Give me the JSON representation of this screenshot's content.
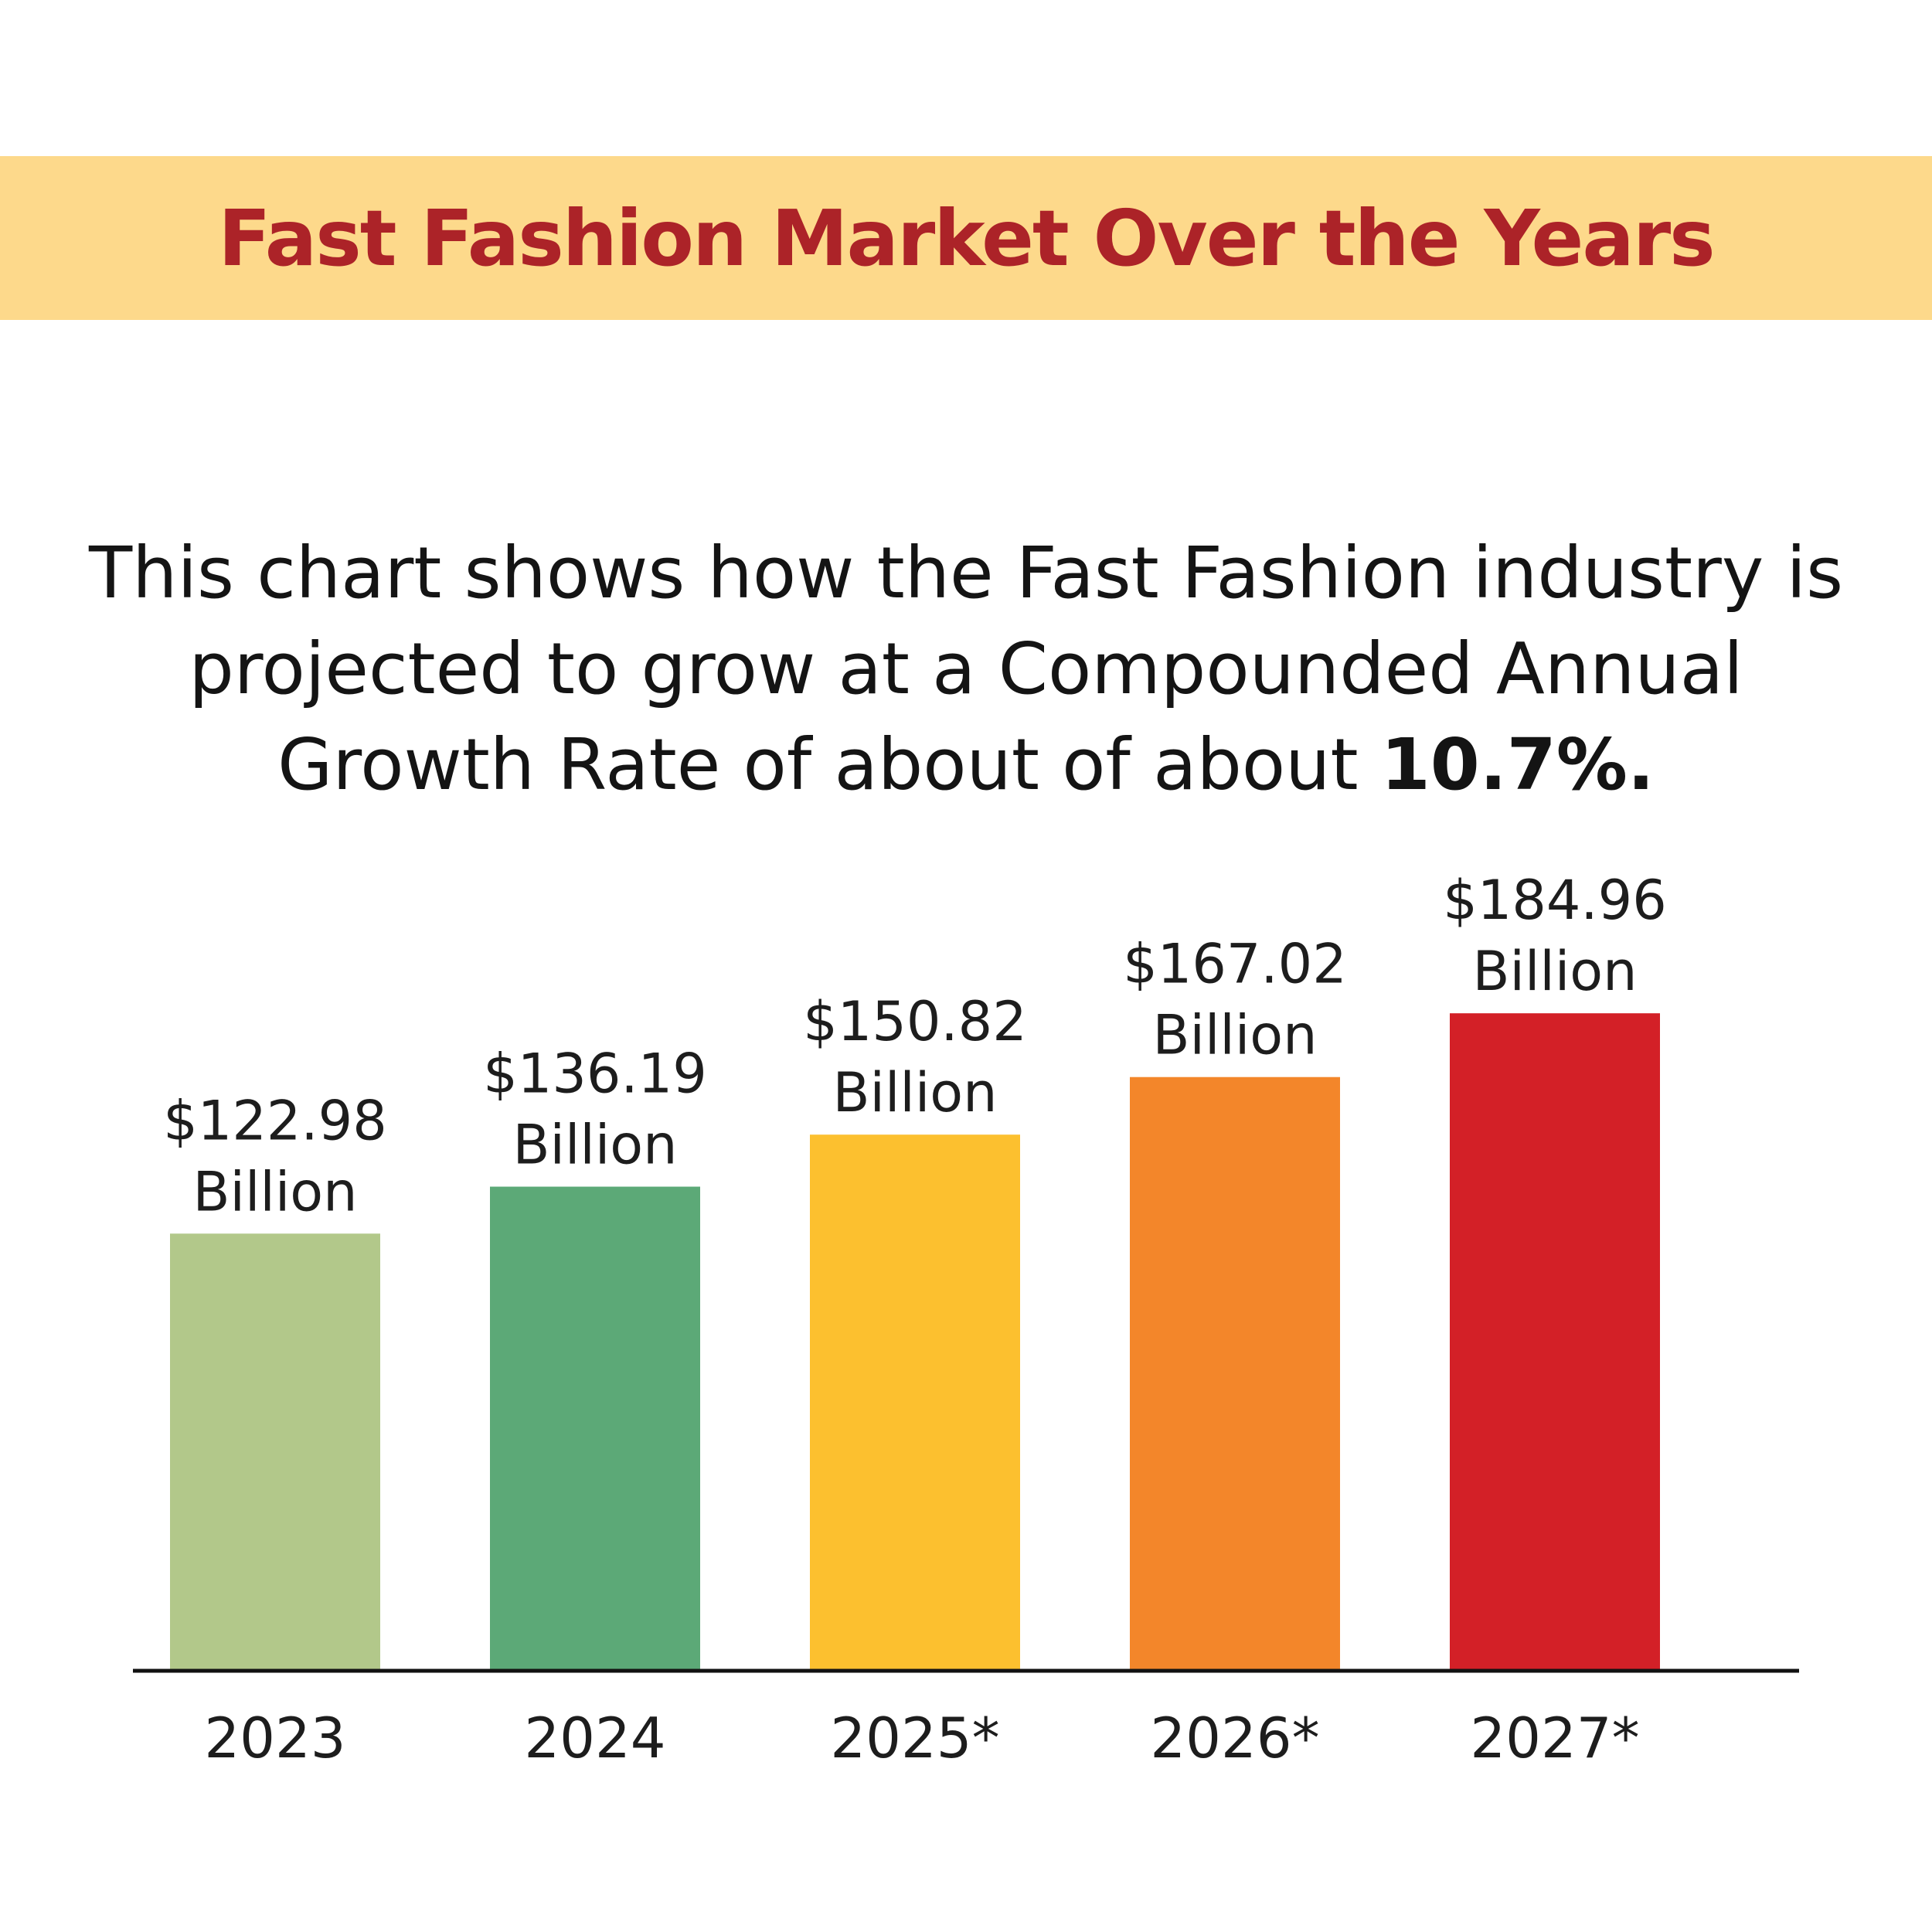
{
  "header": {
    "title": "Fast Fashion Market Over the Years"
  },
  "description": {
    "text": "This chart shows how the Fast Fashion industry is projected to grow at a Compounded Annual Growth Rate of about of about ",
    "highlight": "10.7%."
  },
  "colors": {
    "title_band": "#fdd98b",
    "title_text": "#ac2328",
    "axis": "#111111"
  },
  "chart_data": {
    "type": "bar",
    "title": "Fast Fashion Market Over the Years",
    "xlabel": "",
    "ylabel": "",
    "grid": false,
    "categories": [
      "2023",
      "2024",
      "2025*",
      "2026*",
      "2027*"
    ],
    "values": [
      122.98,
      136.19,
      150.82,
      167.02,
      184.96
    ],
    "value_labels": [
      "$122.98",
      "$136.19",
      "$150.82",
      "$167.02",
      "$184.96"
    ],
    "unit_label": "Billion",
    "bar_colors": [
      "#b2c88a",
      "#5ca977",
      "#fcc02f",
      "#f3862a",
      "#d32027"
    ]
  }
}
